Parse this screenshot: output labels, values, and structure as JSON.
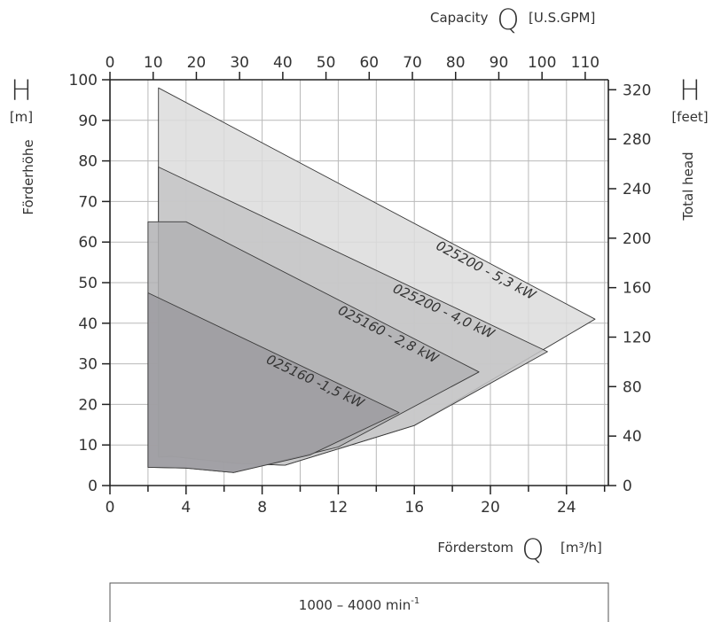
{
  "chart_data": {
    "type": "area",
    "xlabel": "Förderstom",
    "xunit": "[m³/h]",
    "x_symbol": "Q",
    "ylabel": "Förderhöhe",
    "yunit": "[m]",
    "y_symbol": "H",
    "x2label": "Capacity",
    "x2unit": "[U.S.GPM]",
    "x2_symbol": "Q",
    "y2label": "Total head",
    "y2unit": "[feet]",
    "y2_symbol": "H",
    "xlim": [
      0,
      26.2
    ],
    "ylim": [
      0,
      100
    ],
    "x_ticks": [
      0,
      4,
      8,
      12,
      16,
      20,
      24
    ],
    "y_ticks": [
      0,
      10,
      20,
      30,
      40,
      50,
      60,
      70,
      80,
      90,
      100
    ],
    "x2_ticks": [
      0,
      10,
      20,
      30,
      40,
      50,
      60,
      70,
      80,
      90,
      100,
      110
    ],
    "y2_ticks": [
      0,
      40,
      80,
      120,
      160,
      200,
      240,
      280,
      320
    ],
    "grid": true,
    "series": [
      {
        "name": "025200 - 5,3 kW",
        "color": "#dcdcdc",
        "upper": [
          [
            2.55,
            98
          ],
          [
            25.5,
            41
          ]
        ],
        "lower": [
          [
            2.55,
            7
          ],
          [
            3.2,
            7.2
          ],
          [
            6.6,
            5.5
          ],
          [
            9.2,
            5
          ],
          [
            16,
            14.8
          ],
          [
            25.5,
            41
          ]
        ]
      },
      {
        "name": "025200 - 4,0 kW",
        "color": "#c4c4c6",
        "upper": [
          [
            2.55,
            78.5
          ],
          [
            23,
            33
          ]
        ],
        "lower": [
          [
            2.55,
            7
          ],
          [
            3.2,
            7.2
          ],
          [
            6.6,
            5.5
          ],
          [
            9.2,
            5
          ],
          [
            16,
            14.8
          ],
          [
            23,
            33
          ]
        ]
      },
      {
        "name": "025160 - 2,8 kW",
        "color": "#b1b1b4",
        "upper": [
          [
            2.0,
            65
          ],
          [
            4.0,
            65
          ],
          [
            19.4,
            28
          ]
        ],
        "lower": [
          [
            2.0,
            4.5
          ],
          [
            4.0,
            4.3
          ],
          [
            6.5,
            3.2
          ],
          [
            12,
            9.5
          ],
          [
            19.4,
            28
          ]
        ]
      },
      {
        "name": "025160 -1,5 kW",
        "color": "#9d9ca1",
        "upper": [
          [
            2.0,
            47.5
          ],
          [
            15.2,
            18
          ]
        ],
        "lower": [
          [
            2.0,
            4.5
          ],
          [
            4.0,
            4.3
          ],
          [
            6.5,
            3.2
          ],
          [
            10.5,
            7.5
          ],
          [
            15.2,
            18
          ]
        ]
      }
    ],
    "speed_range": "1000 – 4000 min",
    "speed_exp": "-1"
  }
}
